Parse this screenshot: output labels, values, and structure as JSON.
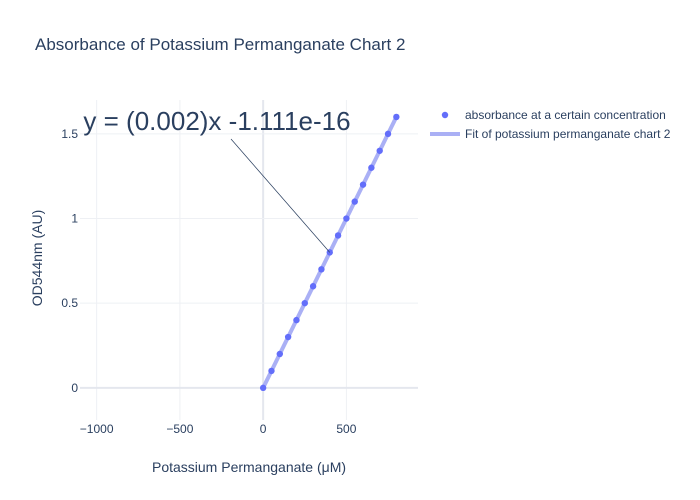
{
  "chart_data": {
    "type": "scatter",
    "title": "Absorbance of Potassium Permanganate Chart 2",
    "xlabel": "Potassium Permanganate (μM)",
    "ylabel": "OD544nm (AU)",
    "xlim": [
      -1100,
      930
    ],
    "ylim": [
      -0.19,
      1.7
    ],
    "x_ticks": [
      -1000,
      -500,
      0,
      500
    ],
    "x_tick_labels": [
      "−1000",
      "−500",
      "0",
      "500"
    ],
    "y_ticks": [
      0,
      0.5,
      1,
      1.5
    ],
    "y_tick_labels": [
      "0",
      "0.5",
      "1",
      "1.5"
    ],
    "grid": true,
    "legend_position": "top-right",
    "series": [
      {
        "name": "absorbance at a certain concentration",
        "mode": "markers",
        "color": "#636efa",
        "x": [
          0,
          50,
          100,
          150,
          200,
          250,
          300,
          350,
          400,
          450,
          500,
          550,
          600,
          650,
          700,
          750,
          800
        ],
        "y": [
          0,
          0.1,
          0.2,
          0.3,
          0.4,
          0.5,
          0.6,
          0.7,
          0.8,
          0.9,
          1.0,
          1.1,
          1.2,
          1.3,
          1.4,
          1.5,
          1.6
        ]
      },
      {
        "name": "Fit of potassium permanganate chart 2",
        "mode": "lines",
        "color": "#aab0f5",
        "x": [
          0,
          800
        ],
        "y": [
          0,
          1.6
        ]
      }
    ],
    "annotations": [
      {
        "text": "y = (0.002)x -1.111e-16",
        "x": 400,
        "y": 0.8
      }
    ]
  }
}
